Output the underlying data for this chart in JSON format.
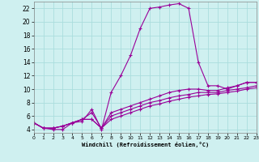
{
  "xlabel": "Windchill (Refroidissement éolien,°C)",
  "bg_color": "#cff0f0",
  "grid_color": "#aadddd",
  "line_color": "#990099",
  "xmin": 0,
  "xmax": 23,
  "ymin": 3.5,
  "ymax": 23,
  "yticks": [
    4,
    6,
    8,
    10,
    12,
    14,
    16,
    18,
    20,
    22
  ],
  "xticks": [
    0,
    1,
    2,
    3,
    4,
    5,
    6,
    7,
    8,
    9,
    10,
    11,
    12,
    13,
    14,
    15,
    16,
    17,
    18,
    19,
    20,
    21,
    22,
    23
  ],
  "series": [
    {
      "x": [
        0,
        1,
        2,
        3,
        4,
        5,
        6,
        7,
        8,
        9,
        10,
        11,
        12,
        13,
        14,
        15,
        16,
        17,
        18,
        19,
        20,
        21,
        22,
        23
      ],
      "y": [
        5.0,
        4.2,
        4.0,
        4.0,
        5.0,
        5.2,
        7.0,
        4.0,
        9.5,
        12.0,
        15.0,
        19.0,
        22.0,
        22.2,
        22.5,
        22.7,
        22.0,
        14.0,
        10.5,
        10.5,
        10.0,
        10.5,
        11.0,
        11.0
      ]
    },
    {
      "x": [
        0,
        1,
        2,
        3,
        4,
        5,
        6,
        7,
        8,
        9,
        10,
        11,
        12,
        13,
        14,
        15,
        16,
        17,
        18,
        19,
        20,
        21,
        22,
        23
      ],
      "y": [
        5.0,
        4.2,
        4.2,
        4.5,
        5.0,
        5.5,
        6.5,
        4.2,
        6.5,
        7.0,
        7.5,
        8.0,
        8.5,
        9.0,
        9.5,
        9.8,
        10.0,
        10.0,
        9.8,
        9.8,
        10.2,
        10.5,
        11.0,
        11.0
      ]
    },
    {
      "x": [
        0,
        1,
        2,
        3,
        4,
        5,
        6,
        7,
        8,
        9,
        10,
        11,
        12,
        13,
        14,
        15,
        16,
        17,
        18,
        19,
        20,
        21,
        22,
        23
      ],
      "y": [
        5.0,
        4.2,
        4.2,
        4.5,
        5.0,
        5.5,
        5.5,
        4.2,
        6.0,
        6.5,
        7.0,
        7.5,
        8.0,
        8.3,
        8.7,
        9.0,
        9.2,
        9.5,
        9.5,
        9.5,
        9.8,
        10.0,
        10.2,
        10.5
      ]
    },
    {
      "x": [
        0,
        1,
        2,
        3,
        4,
        5,
        6,
        7,
        8,
        9,
        10,
        11,
        12,
        13,
        14,
        15,
        16,
        17,
        18,
        19,
        20,
        21,
        22,
        23
      ],
      "y": [
        5.0,
        4.2,
        4.2,
        4.5,
        5.0,
        5.5,
        5.5,
        4.2,
        5.5,
        6.0,
        6.5,
        7.0,
        7.5,
        7.8,
        8.2,
        8.5,
        8.8,
        9.0,
        9.2,
        9.3,
        9.5,
        9.7,
        10.0,
        10.2
      ]
    }
  ]
}
